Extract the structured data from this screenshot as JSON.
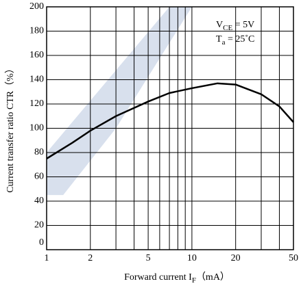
{
  "chart_data": {
    "type": "line",
    "xlabel": {
      "main": "Forward current I",
      "sub": "F",
      "rest": "（mA）"
    },
    "ylabel": "Current transfer ratio CTR（%）",
    "annotations": [
      {
        "main": "V",
        "sub": "CE",
        "rest": " = 5V"
      },
      {
        "main": "T",
        "sub": "a",
        "rest": " = 25˚C"
      }
    ],
    "x": [
      1,
      1.5,
      2,
      3,
      5,
      7,
      10,
      15,
      20,
      30,
      40,
      50
    ],
    "series": [
      {
        "name": "CTR",
        "color": "#000000",
        "values": [
          75,
          88,
          98,
          110,
          122,
          129,
          133,
          137,
          136,
          128,
          118,
          105
        ]
      }
    ],
    "xlog": true,
    "xlim": [
      1,
      50
    ],
    "xticks": [
      1,
      2,
      5,
      10,
      20,
      50
    ],
    "xminor": [
      3,
      4,
      6,
      7,
      8,
      9,
      30,
      40
    ],
    "ylim": [
      0,
      200
    ],
    "yticks": [
      0,
      20,
      40,
      60,
      80,
      100,
      120,
      140,
      160,
      180,
      200
    ],
    "grid": true
  }
}
